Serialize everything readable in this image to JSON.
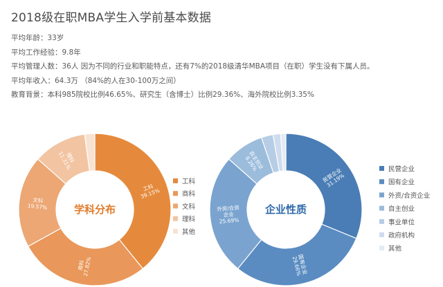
{
  "header": {
    "title": "2018级在职MBA学生入学前基本数据"
  },
  "stats": [
    "平均年龄：33岁",
    "平均工作经验：9.8年",
    "平均管理人数：36人 因为不同的行业和职能特点，还有7%的2018级清华MBA项目（在职）学生没有下属人员。",
    "平均年收入：64.3万 （84%的人在30-100万之间）",
    "教育背景：本科985院校比例46.65%、研究生（含博士）比例29.36%、海外院校比例3.35%"
  ],
  "chart_data": [
    {
      "type": "pie",
      "title": "学科分布",
      "categories": [
        "工科",
        "商科",
        "文科",
        "理科",
        "其他"
      ],
      "values": [
        39.15,
        27.82,
        19.57,
        11.31,
        2.15
      ],
      "labels": [
        "工科\n39.15%",
        "商科\n27.82%",
        "文科\n19.57%",
        "理科\n11.31%",
        ""
      ],
      "colors": [
        "#e58a3c",
        "#e9975a",
        "#eca774",
        "#f2c4a2",
        "#f8e3d3"
      ],
      "center_color": "#e07b2b",
      "legend_position": "right"
    },
    {
      "type": "pie",
      "title": "企业性质",
      "categories": [
        "民营企业",
        "国有企业",
        "外资/合资企业",
        "自主创业",
        "事业单位",
        "政府机构",
        "其他"
      ],
      "values": [
        31.19,
        29.66,
        25.69,
        8.26,
        2.5,
        1.6,
        1.1
      ],
      "labels": [
        "民营企业\n31.19%",
        "国有企业\n29.66%",
        "外资/合资\n企业\n25.69%",
        "自主创业\n8.26%",
        "",
        "",
        ""
      ],
      "colors": [
        "#4a7db5",
        "#5a8cc1",
        "#7aa4cf",
        "#9cbcdc",
        "#b6cde5",
        "#cfdcee",
        "#e3ebf5"
      ],
      "center_color": "#2f6aa8",
      "legend_position": "right"
    }
  ]
}
